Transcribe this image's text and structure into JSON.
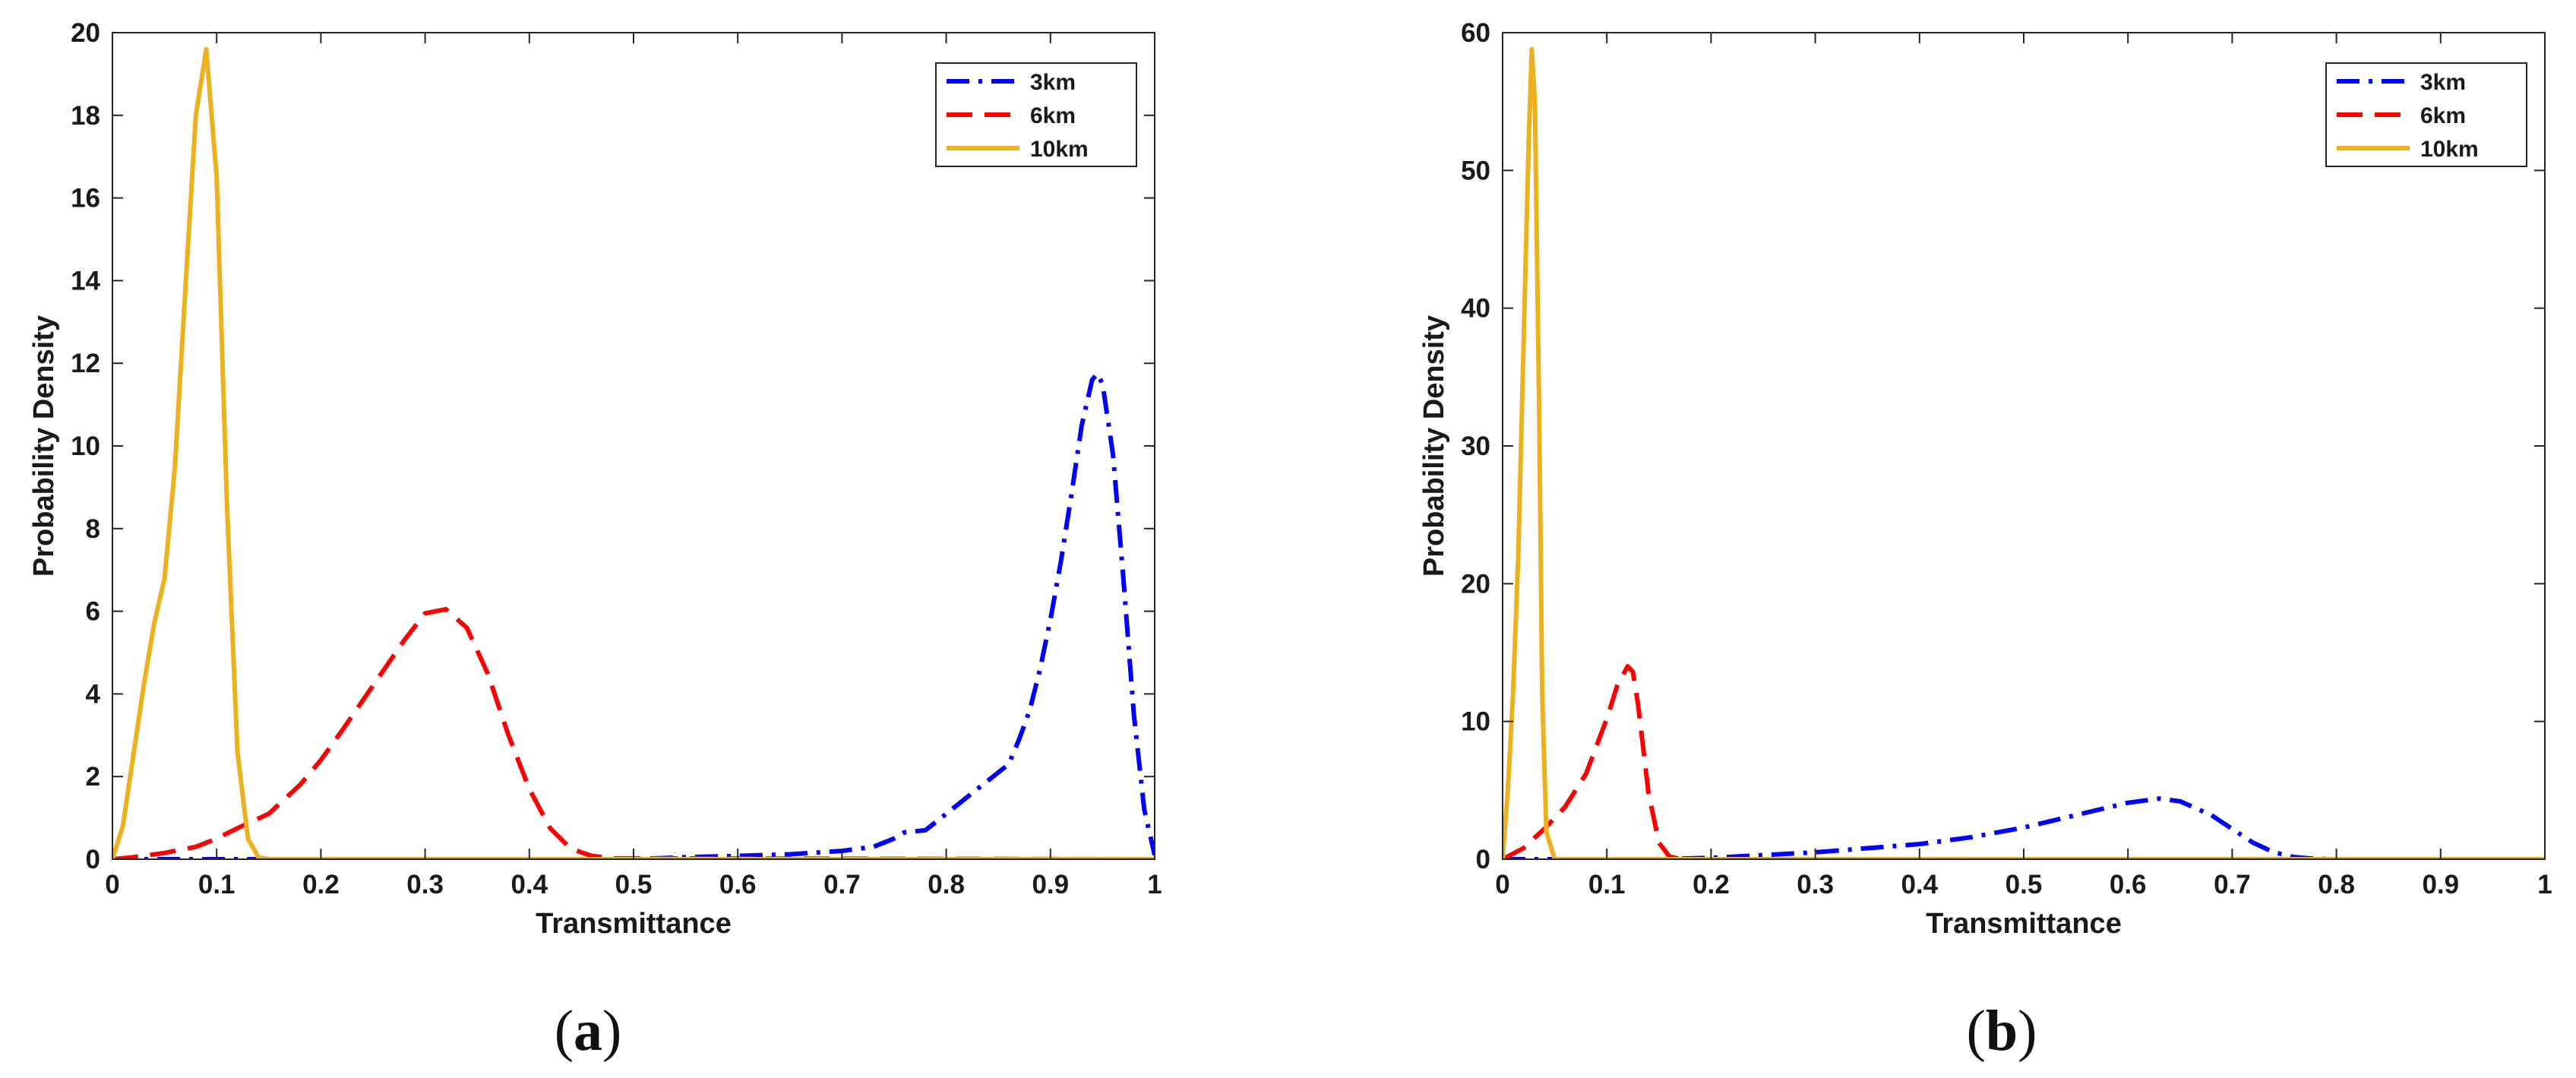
{
  "chart_data": [
    {
      "type": "line",
      "panel_label": "a",
      "xlabel": "Transmittance",
      "ylabel": "Probability Density",
      "xlim": [
        0,
        1
      ],
      "ylim": [
        0,
        20
      ],
      "xticks": [
        0,
        0.1,
        0.2,
        0.3,
        0.4,
        0.5,
        0.6,
        0.7,
        0.8,
        0.9,
        1
      ],
      "xtick_labels": [
        "0",
        "0.1",
        "0.2",
        "0.3",
        "0.4",
        "0.5",
        "0.6",
        "0.7",
        "0.8",
        "0.9",
        "1"
      ],
      "yticks": [
        0,
        2,
        4,
        6,
        8,
        10,
        12,
        14,
        16,
        18,
        20
      ],
      "ytick_labels": [
        "0",
        "2",
        "4",
        "6",
        "8",
        "10",
        "12",
        "14",
        "16",
        "18",
        "20"
      ],
      "grid": false,
      "legend_position": "top-right",
      "series": [
        {
          "name": "3km",
          "color": "#0000ff",
          "style": "dashdot",
          "x": [
            0,
            0.15,
            0.5,
            0.55,
            0.6,
            0.65,
            0.7,
            0.73,
            0.75,
            0.76,
            0.78,
            0.8,
            0.82,
            0.84,
            0.86,
            0.87,
            0.88,
            0.89,
            0.9,
            0.91,
            0.92,
            0.93,
            0.94,
            0.945,
            0.95,
            0.96,
            0.97,
            0.98,
            0.99,
            1.0
          ],
          "y": [
            0,
            0,
            0,
            0.05,
            0.08,
            0.12,
            0.2,
            0.3,
            0.5,
            0.65,
            0.7,
            1.1,
            1.5,
            1.9,
            2.3,
            2.9,
            3.6,
            4.6,
            5.8,
            7.2,
            8.8,
            10.5,
            11.6,
            11.75,
            11.5,
            9.8,
            6.8,
            3.5,
            1.2,
            0.1
          ]
        },
        {
          "name": "6km",
          "color": "#ff0000",
          "style": "dashed",
          "x": [
            0,
            0.02,
            0.05,
            0.08,
            0.1,
            0.12,
            0.15,
            0.18,
            0.2,
            0.22,
            0.25,
            0.28,
            0.3,
            0.32,
            0.34,
            0.36,
            0.38,
            0.4,
            0.42,
            0.44,
            0.46,
            0.48,
            1.0
          ],
          "y": [
            0,
            0.05,
            0.15,
            0.3,
            0.5,
            0.75,
            1.1,
            1.8,
            2.4,
            3.1,
            4.2,
            5.3,
            5.95,
            6.05,
            5.6,
            4.5,
            3.0,
            1.7,
            0.75,
            0.25,
            0.08,
            0.02,
            0
          ]
        },
        {
          "name": "10km",
          "color": "#edb120",
          "style": "solid",
          "x": [
            0,
            0.01,
            0.02,
            0.03,
            0.04,
            0.05,
            0.06,
            0.07,
            0.08,
            0.09,
            0.1,
            0.11,
            0.12,
            0.13,
            0.14,
            0.15,
            1.0
          ],
          "y": [
            0,
            0.8,
            2.5,
            4.2,
            5.7,
            6.8,
            9.5,
            13.8,
            18.0,
            19.6,
            16.5,
            8.5,
            2.6,
            0.5,
            0.05,
            0,
            0
          ]
        }
      ]
    },
    {
      "type": "line",
      "panel_label": "b",
      "xlabel": "Transmittance",
      "ylabel": "Probability Density",
      "xlim": [
        0,
        1
      ],
      "ylim": [
        0,
        60
      ],
      "xticks": [
        0,
        0.1,
        0.2,
        0.3,
        0.4,
        0.5,
        0.6,
        0.7,
        0.8,
        0.9,
        1
      ],
      "xtick_labels": [
        "0",
        "0.1",
        "0.2",
        "0.3",
        "0.4",
        "0.5",
        "0.6",
        "0.7",
        "0.8",
        "0.9",
        "1"
      ],
      "yticks": [
        0,
        10,
        20,
        30,
        40,
        50,
        60
      ],
      "ytick_labels": [
        "0",
        "10",
        "20",
        "30",
        "40",
        "50",
        "60"
      ],
      "grid": false,
      "legend_position": "top-right",
      "series": [
        {
          "name": "3km",
          "color": "#0000ff",
          "style": "dashdot",
          "x": [
            0,
            0.15,
            0.2,
            0.25,
            0.3,
            0.35,
            0.4,
            0.45,
            0.5,
            0.55,
            0.6,
            0.63,
            0.65,
            0.68,
            0.7,
            0.72,
            0.74,
            0.76,
            0.78,
            0.8,
            1.0
          ],
          "y": [
            0,
            0,
            0.1,
            0.3,
            0.5,
            0.8,
            1.1,
            1.6,
            2.3,
            3.2,
            4.1,
            4.4,
            4.2,
            3.2,
            2.2,
            1.2,
            0.5,
            0.15,
            0.03,
            0,
            0
          ]
        },
        {
          "name": "6km",
          "color": "#ff0000",
          "style": "dashed",
          "x": [
            0,
            0.02,
            0.04,
            0.06,
            0.08,
            0.1,
            0.11,
            0.12,
            0.125,
            0.13,
            0.14,
            0.15,
            0.16,
            0.17,
            0.18,
            1.0
          ],
          "y": [
            0,
            0.8,
            2.2,
            3.8,
            6.2,
            10.2,
            12.6,
            14.0,
            13.6,
            11.2,
            4.8,
            1.2,
            0.2,
            0.02,
            0,
            0
          ]
        },
        {
          "name": "10km",
          "color": "#edb120",
          "style": "solid",
          "x": [
            0,
            0.005,
            0.01,
            0.015,
            0.02,
            0.025,
            0.028,
            0.031,
            0.035,
            0.038,
            0.042,
            0.05,
            1.0
          ],
          "y": [
            0,
            5,
            12,
            22,
            37,
            52,
            58.8,
            55,
            33,
            12,
            2,
            0,
            0
          ]
        }
      ]
    }
  ]
}
